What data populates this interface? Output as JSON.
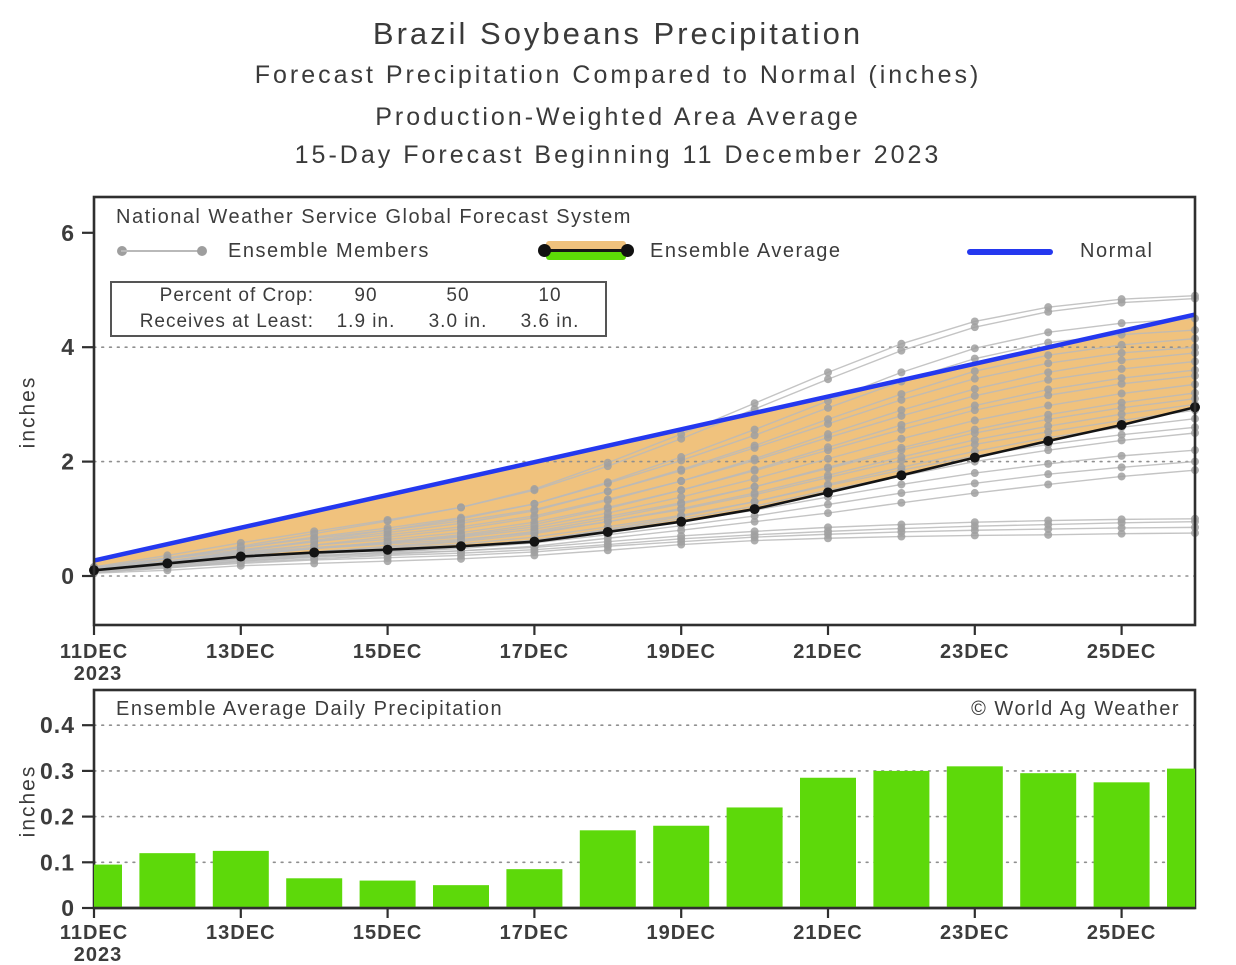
{
  "titles": [
    "Brazil Soybeans Precipitation",
    "Forecast Precipitation Compared to Normal (inches)",
    "Production-Weighted Area Average",
    "15-Day Forecast Beginning 11 December 2023"
  ],
  "colors": {
    "text": "#3c3c3c",
    "border": "#2f2f2f",
    "grid": "#8f8f8f",
    "normal_blue": "#2438ef",
    "fill_orange": "#f0c27d",
    "legend_green": "#5ddb07",
    "bar_green": "#5dd90a",
    "member_line_gray": "#bababa",
    "member_dot_gray": "#a0a0a0",
    "average_black": "#141414"
  },
  "chart_data": [
    {
      "type": "line",
      "title": "National Weather Service Global Forecast System",
      "ylabel": "inches",
      "ylim": [
        -0.86,
        6.62
      ],
      "y_ticks": [
        0,
        2,
        4,
        6
      ],
      "x_days": 15,
      "x_tick_days": [
        0,
        2,
        4,
        6,
        8,
        10,
        12,
        14
      ],
      "x_tick_labels": [
        "11DEC",
        "13DEC",
        "15DEC",
        "17DEC",
        "19DEC",
        "21DEC",
        "23DEC",
        "25DEC"
      ],
      "x_year_label": "2023",
      "grid_y": [
        0,
        2,
        4
      ],
      "legend": {
        "source_line": "National Weather Service Global Forecast System",
        "items": [
          {
            "label": "Ensemble Members",
            "symbol": "gray-line-with-dots"
          },
          {
            "label": "Ensemble Average",
            "symbol": "orange-green-band-black-line"
          },
          {
            "label": "Normal",
            "symbol": "blue-line"
          }
        ]
      },
      "crop_box": {
        "rows": [
          {
            "label": "Percent of Crop:",
            "values": [
              "90",
              "50",
              "10"
            ]
          },
          {
            "label": "Receives at Least:",
            "values": [
              "1.9 in.",
              "3.0 in.",
              "3.6 in."
            ]
          }
        ]
      },
      "normal_line": {
        "start": 0.27,
        "end": 4.57
      },
      "ensemble_average": [
        0.1,
        0.22,
        0.34,
        0.41,
        0.46,
        0.52,
        0.6,
        0.77,
        0.95,
        1.17,
        1.46,
        1.76,
        2.07,
        2.36,
        2.64,
        2.95
      ],
      "members": [
        [
          0.05,
          0.1,
          0.18,
          0.22,
          0.26,
          0.3,
          0.36,
          0.45,
          0.55,
          0.62,
          0.66,
          0.69,
          0.71,
          0.72,
          0.74,
          0.75
        ],
        [
          0.08,
          0.15,
          0.22,
          0.28,
          0.32,
          0.36,
          0.42,
          0.52,
          0.6,
          0.68,
          0.73,
          0.77,
          0.8,
          0.82,
          0.84,
          0.85
        ],
        [
          0.06,
          0.14,
          0.24,
          0.3,
          0.36,
          0.4,
          0.46,
          0.55,
          0.65,
          0.72,
          0.78,
          0.83,
          0.87,
          0.9,
          0.93,
          0.95
        ],
        [
          0.1,
          0.2,
          0.3,
          0.36,
          0.4,
          0.44,
          0.5,
          0.6,
          0.7,
          0.78,
          0.85,
          0.9,
          0.94,
          0.97,
          0.99,
          1.0
        ],
        [
          0.07,
          0.16,
          0.26,
          0.33,
          0.38,
          0.44,
          0.52,
          0.66,
          0.8,
          0.95,
          1.1,
          1.28,
          1.45,
          1.6,
          1.74,
          1.85
        ],
        [
          0.09,
          0.18,
          0.28,
          0.35,
          0.42,
          0.48,
          0.58,
          0.72,
          0.88,
          1.05,
          1.25,
          1.45,
          1.62,
          1.78,
          1.9,
          2.0
        ],
        [
          0.12,
          0.22,
          0.33,
          0.4,
          0.46,
          0.52,
          0.62,
          0.78,
          0.95,
          1.15,
          1.38,
          1.6,
          1.8,
          1.96,
          2.1,
          2.2
        ],
        [
          0.08,
          0.18,
          0.3,
          0.38,
          0.45,
          0.52,
          0.63,
          0.8,
          1.0,
          1.22,
          1.5,
          1.75,
          2.0,
          2.2,
          2.37,
          2.5
        ],
        [
          0.1,
          0.22,
          0.34,
          0.42,
          0.48,
          0.56,
          0.68,
          0.86,
          1.06,
          1.3,
          1.58,
          1.85,
          2.1,
          2.3,
          2.47,
          2.6
        ],
        [
          0.06,
          0.15,
          0.26,
          0.34,
          0.42,
          0.5,
          0.62,
          0.82,
          1.04,
          1.3,
          1.6,
          1.9,
          2.18,
          2.42,
          2.6,
          2.75
        ],
        [
          0.11,
          0.24,
          0.38,
          0.48,
          0.56,
          0.64,
          0.76,
          0.95,
          1.16,
          1.42,
          1.72,
          2.02,
          2.3,
          2.52,
          2.72,
          2.9
        ],
        [
          0.09,
          0.2,
          0.32,
          0.42,
          0.5,
          0.6,
          0.74,
          0.95,
          1.18,
          1.45,
          1.76,
          2.08,
          2.38,
          2.62,
          2.83,
          3.0
        ],
        [
          0.13,
          0.26,
          0.4,
          0.5,
          0.58,
          0.68,
          0.82,
          1.04,
          1.28,
          1.56,
          1.88,
          2.2,
          2.5,
          2.74,
          2.94,
          3.1
        ],
        [
          0.07,
          0.18,
          0.32,
          0.42,
          0.52,
          0.62,
          0.78,
          1.0,
          1.26,
          1.56,
          1.9,
          2.24,
          2.56,
          2.82,
          3.03,
          3.2
        ],
        [
          0.1,
          0.22,
          0.36,
          0.48,
          0.58,
          0.7,
          0.86,
          1.1,
          1.38,
          1.7,
          2.05,
          2.4,
          2.72,
          2.98,
          3.19,
          3.35
        ],
        [
          0.12,
          0.26,
          0.42,
          0.54,
          0.64,
          0.76,
          0.94,
          1.2,
          1.5,
          1.84,
          2.2,
          2.56,
          2.9,
          3.16,
          3.36,
          3.5
        ],
        [
          0.08,
          0.2,
          0.36,
          0.48,
          0.6,
          0.72,
          0.9,
          1.18,
          1.5,
          1.86,
          2.25,
          2.64,
          2.98,
          3.26,
          3.46,
          3.6
        ],
        [
          0.14,
          0.3,
          0.46,
          0.6,
          0.72,
          0.86,
          1.05,
          1.34,
          1.66,
          2.02,
          2.42,
          2.8,
          3.15,
          3.43,
          3.62,
          3.75
        ],
        [
          0.1,
          0.24,
          0.4,
          0.54,
          0.68,
          0.82,
          1.02,
          1.32,
          1.66,
          2.05,
          2.48,
          2.9,
          3.27,
          3.56,
          3.77,
          3.9
        ],
        [
          0.15,
          0.32,
          0.5,
          0.66,
          0.8,
          0.96,
          1.16,
          1.48,
          1.84,
          2.24,
          2.66,
          3.08,
          3.45,
          3.72,
          3.9,
          4.0
        ],
        [
          0.11,
          0.26,
          0.44,
          0.6,
          0.76,
          0.92,
          1.14,
          1.48,
          1.86,
          2.28,
          2.74,
          3.18,
          3.58,
          3.86,
          4.04,
          4.15
        ],
        [
          0.13,
          0.3,
          0.5,
          0.68,
          0.84,
          1.02,
          1.26,
          1.62,
          2.02,
          2.46,
          2.94,
          3.4,
          3.8,
          4.08,
          4.22,
          4.3
        ],
        [
          0.09,
          0.24,
          0.44,
          0.62,
          0.8,
          1.0,
          1.26,
          1.64,
          2.08,
          2.56,
          3.06,
          3.56,
          3.98,
          4.26,
          4.42,
          4.5
        ],
        [
          0.16,
          0.36,
          0.58,
          0.78,
          0.98,
          1.2,
          1.5,
          1.92,
          2.4,
          2.92,
          3.44,
          3.94,
          4.35,
          4.62,
          4.78,
          4.85
        ],
        [
          0.12,
          0.3,
          0.52,
          0.74,
          0.96,
          1.2,
          1.52,
          1.98,
          2.48,
          3.02,
          3.56,
          4.06,
          4.45,
          4.7,
          4.84,
          4.9
        ]
      ]
    },
    {
      "type": "bar",
      "title": "Ensemble Average Daily Precipitation",
      "copyright": "© World Ag Weather",
      "ylabel": "inches",
      "ylim": [
        0,
        0.477
      ],
      "y_ticks": [
        0,
        0.1,
        0.2,
        0.3,
        0.4
      ],
      "grid_y": [
        0.1,
        0.2,
        0.3,
        0.4
      ],
      "x_days": 15,
      "x_tick_days": [
        0,
        2,
        4,
        6,
        8,
        10,
        12,
        14
      ],
      "x_tick_labels": [
        "11DEC",
        "13DEC",
        "15DEC",
        "17DEC",
        "19DEC",
        "21DEC",
        "23DEC",
        "25DEC"
      ],
      "x_year_label": "2023",
      "values": [
        0.095,
        0.12,
        0.125,
        0.065,
        0.06,
        0.05,
        0.085,
        0.17,
        0.18,
        0.22,
        0.285,
        0.3,
        0.31,
        0.295,
        0.275,
        0.305
      ]
    }
  ]
}
